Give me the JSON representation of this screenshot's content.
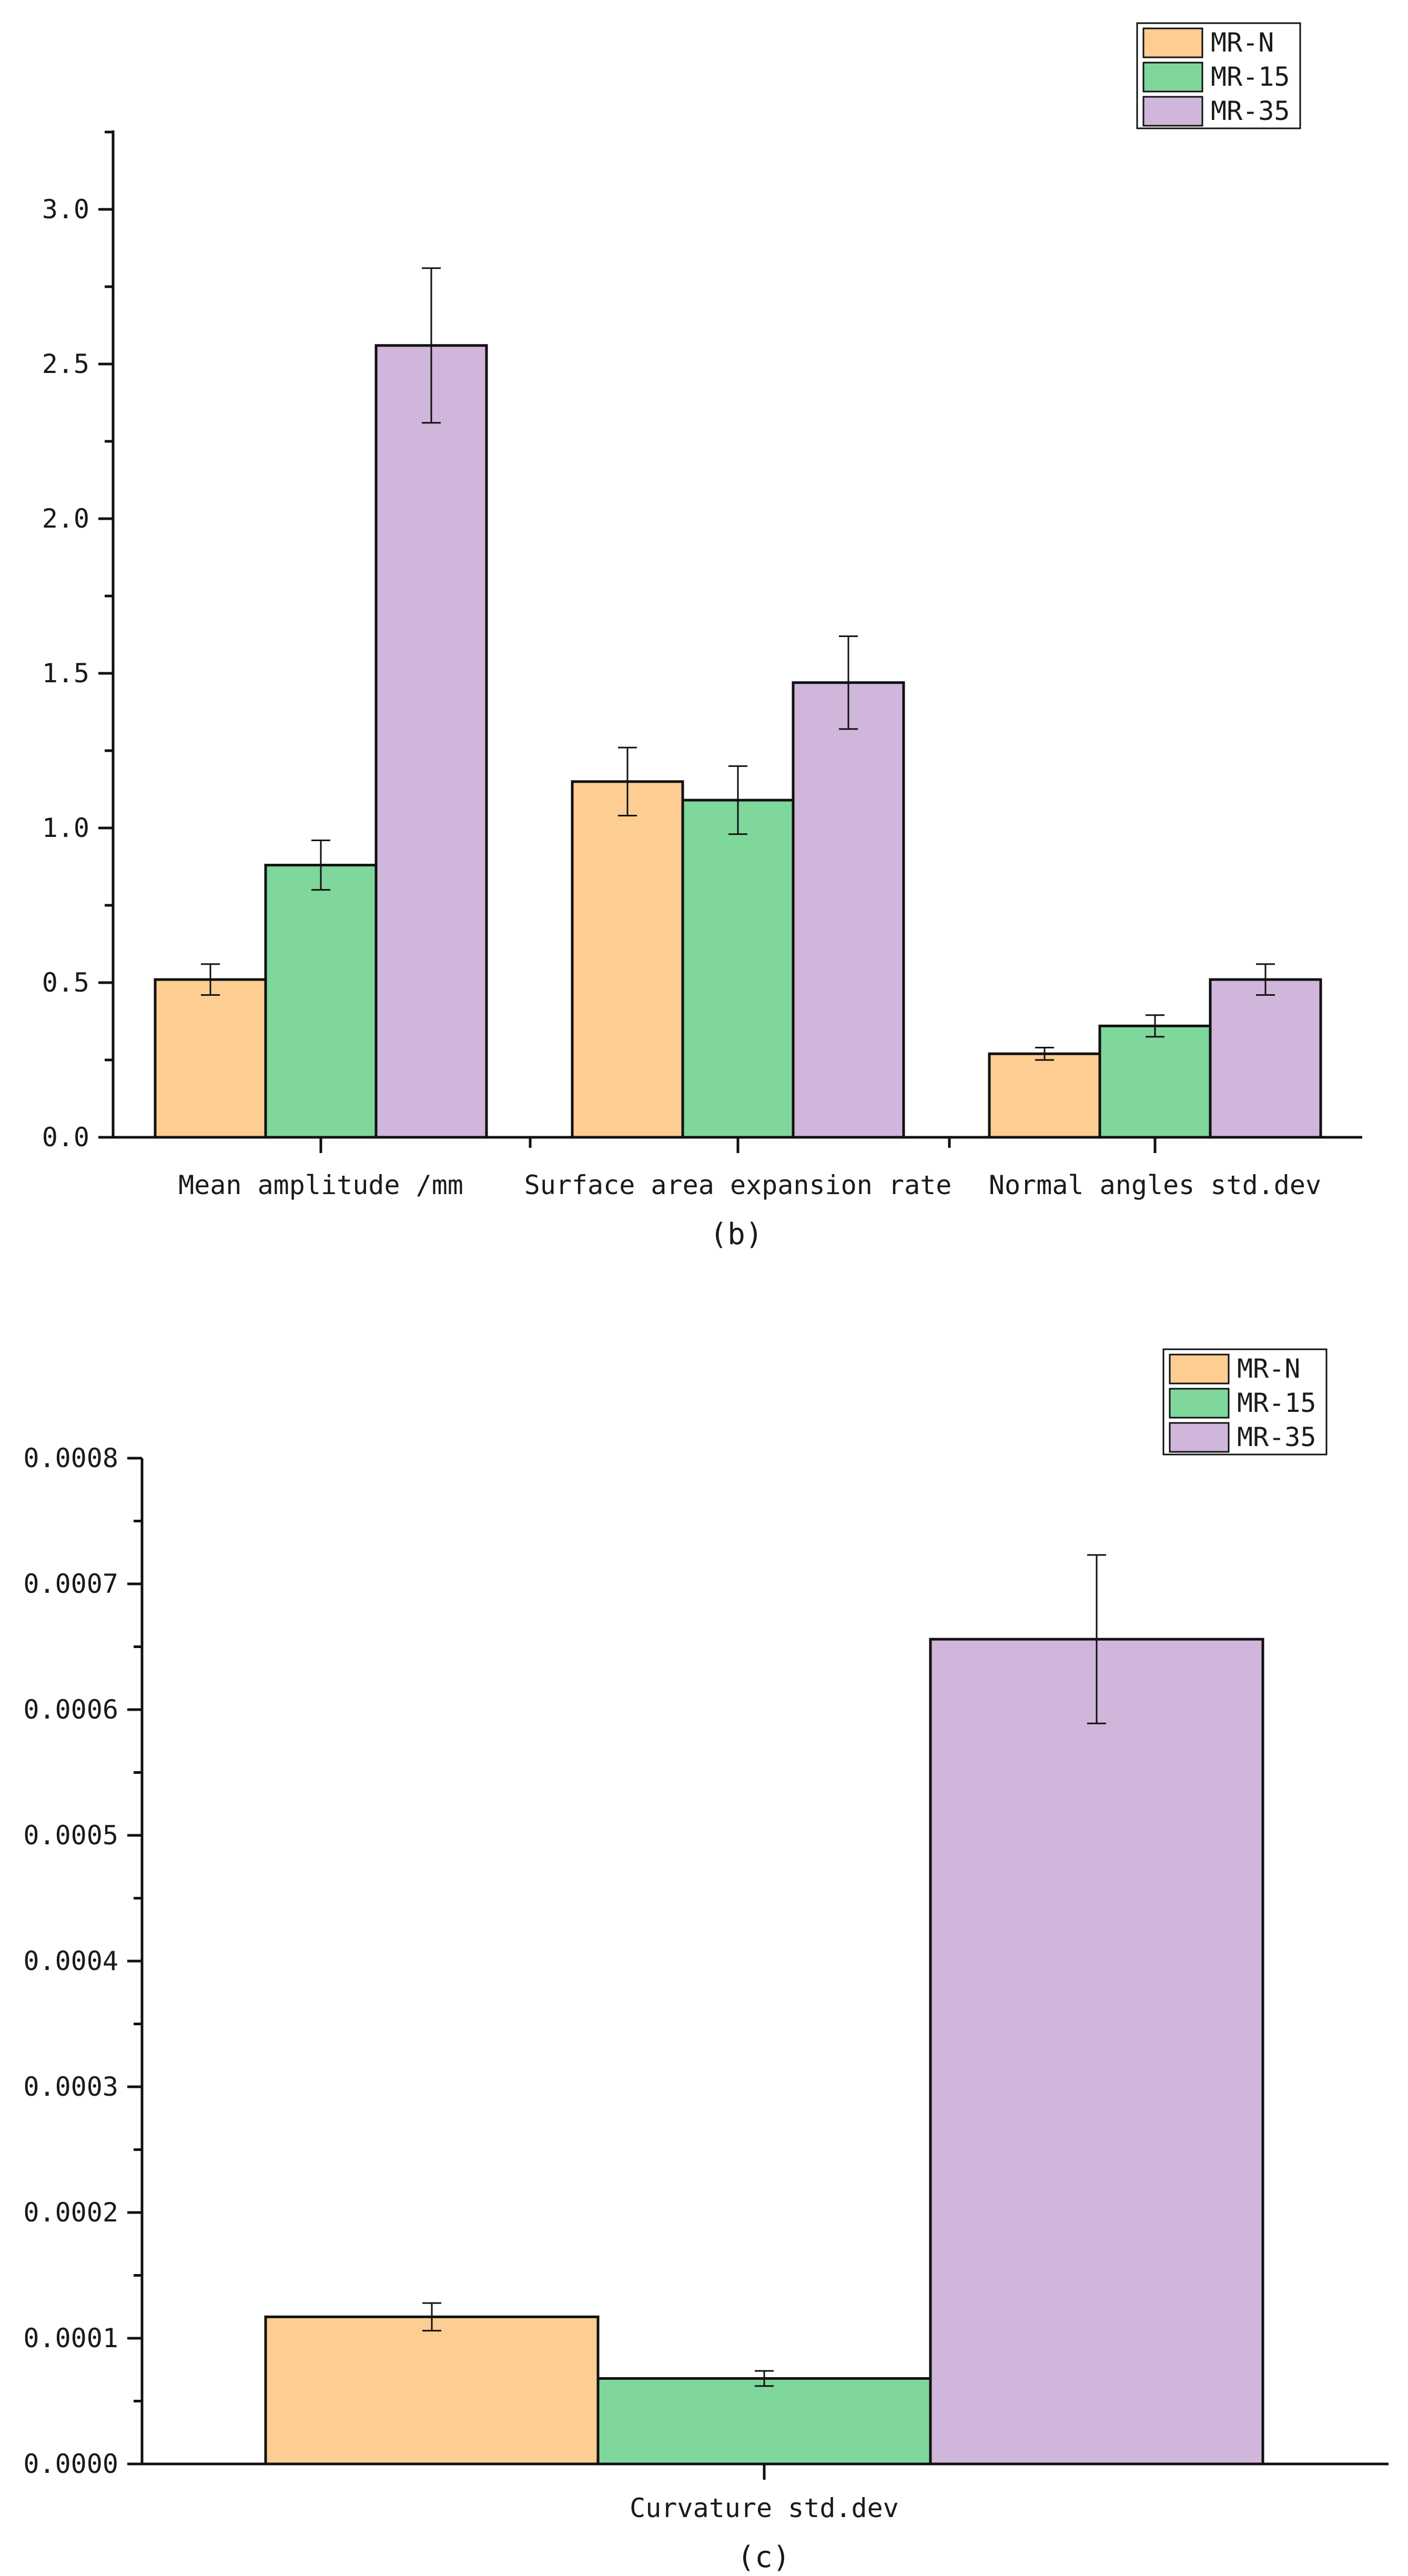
{
  "chart_data": [
    {
      "type": "bar",
      "panel_label": "(b)",
      "categories": [
        "Mean amplitude /mm",
        "Surface area expansion rate",
        "Normal angles std.dev"
      ],
      "series": [
        {
          "name": "MR-N",
          "values": [
            0.51,
            1.15,
            0.27
          ],
          "errors": [
            0.05,
            0.11,
            0.02
          ],
          "color": "#fdcd91"
        },
        {
          "name": "MR-15",
          "values": [
            0.88,
            1.09,
            0.36
          ],
          "errors": [
            0.08,
            0.11,
            0.035
          ],
          "color": "#7fd79b"
        },
        {
          "name": "MR-35",
          "values": [
            2.56,
            1.47,
            0.51
          ],
          "errors": [
            0.25,
            0.15,
            0.05
          ],
          "color": "#cfb6da"
        }
      ],
      "y_ticks": [
        "0.0",
        "0.5",
        "1.0",
        "1.5",
        "2.0",
        "2.5",
        "3.0"
      ],
      "ylim": [
        0,
        3.25
      ],
      "legend": [
        "MR-N",
        "MR-15",
        "MR-35"
      ],
      "legend_position": "top-right",
      "grid": false
    },
    {
      "type": "bar",
      "panel_label": "(c)",
      "categories": [
        "Curvature std.dev"
      ],
      "series": [
        {
          "name": "MR-N",
          "values": [
            0.000117
          ],
          "errors": [
            1.1e-05
          ],
          "color": "#fdcd91"
        },
        {
          "name": "MR-15",
          "values": [
            6.8e-05
          ],
          "errors": [
            6e-06
          ],
          "color": "#7fd79b"
        },
        {
          "name": "MR-35",
          "values": [
            0.000656
          ],
          "errors": [
            6.7e-05
          ],
          "color": "#cfb6da"
        }
      ],
      "y_ticks": [
        "0.0000",
        "0.0001",
        "0.0002",
        "0.0003",
        "0.0004",
        "0.0005",
        "0.0006",
        "0.0007",
        "0.0008"
      ],
      "ylim": [
        0,
        0.0008
      ],
      "legend": [
        "MR-N",
        "MR-15",
        "MR-35"
      ],
      "legend_position": "top-right",
      "grid": false
    }
  ]
}
